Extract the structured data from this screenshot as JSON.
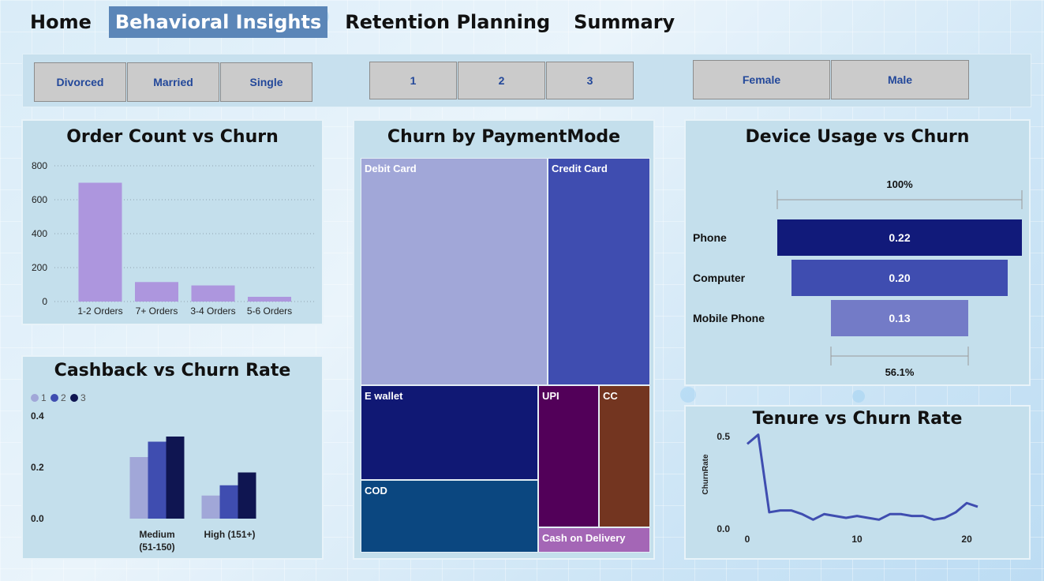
{
  "nav": {
    "tabs": [
      {
        "label": "Home",
        "active": false
      },
      {
        "label": "Behavioral Insights",
        "active": true
      },
      {
        "label": "Retention Planning",
        "active": false
      },
      {
        "label": "Summary",
        "active": false
      }
    ]
  },
  "slicers": {
    "marital": [
      "Divorced",
      "Married",
      "Single"
    ],
    "tier": [
      "1",
      "2",
      "3"
    ],
    "gender": [
      "Female",
      "Male"
    ]
  },
  "order_chart": {
    "title": "Order Count vs Churn",
    "bar_color": "#ad96de",
    "y_ticks": [
      "800",
      "600",
      "400",
      "200",
      "0"
    ]
  },
  "cashback_chart": {
    "title": "Cashback vs Churn Rate",
    "legend": [
      "1",
      "2",
      "3"
    ],
    "y_ticks": [
      "0.4",
      "0.2",
      "0.0"
    ],
    "category_lines": [
      [
        "Medium",
        "(51-150)"
      ],
      [
        "High (151+)"
      ]
    ]
  },
  "payment_chart": {
    "title": "Churn by PaymentMode",
    "cells": [
      {
        "label": "Debit Card",
        "color": "#a1a7d8"
      },
      {
        "label": "Credit Card",
        "color": "#3f4db0"
      },
      {
        "label": "E wallet",
        "color": "#101874"
      },
      {
        "label": "UPI",
        "color": "#520059"
      },
      {
        "label": "CC",
        "color": "#733520"
      },
      {
        "label": "COD",
        "color": "#0b4780"
      },
      {
        "label": "Cash on Delivery",
        "color": "#a466b6"
      }
    ]
  },
  "device_chart": {
    "title": "Device Usage vs Churn",
    "top_label": "100%",
    "bottom_label": "56.1%",
    "rows": [
      {
        "label": "Phone",
        "value": "0.22",
        "color": "#111a7a"
      },
      {
        "label": "Computer",
        "value": "0.20",
        "color": "#3f4db0"
      },
      {
        "label": "Mobile Phone",
        "value": "0.13",
        "color": "#737bc7"
      }
    ]
  },
  "tenure_chart": {
    "title": "Tenure vs Churn Rate",
    "ylabel": "ChurnRate",
    "y_ticks": [
      "0.5",
      "0.0"
    ],
    "x_ticks": [
      "0",
      "10",
      "20"
    ],
    "line_color": "#3f4db0"
  },
  "chart_data": [
    {
      "type": "bar",
      "title": "Order Count vs Churn",
      "categories": [
        "1-2 Orders",
        "7+ Orders",
        "3-4 Orders",
        "5-6 Orders"
      ],
      "values": [
        700,
        115,
        95,
        28
      ],
      "ylim": [
        0,
        800
      ],
      "grid": true
    },
    {
      "type": "bar",
      "title": "Cashback vs Churn Rate",
      "categories": [
        "Medium (51-150)",
        "High (151+)"
      ],
      "series": [
        {
          "name": "1",
          "values": [
            0.24,
            0.09
          ],
          "color": "#a1a7d8"
        },
        {
          "name": "2",
          "values": [
            0.3,
            0.13
          ],
          "color": "#3f4db0"
        },
        {
          "name": "3",
          "values": [
            0.32,
            0.18
          ],
          "color": "#0f1551"
        }
      ],
      "ylim": [
        0,
        0.4
      ],
      "legend": "top-left"
    },
    {
      "type": "treemap",
      "title": "Churn by PaymentMode",
      "categories": [
        "Debit Card",
        "Credit Card",
        "E wallet",
        "UPI",
        "CC",
        "COD",
        "Cash on Delivery"
      ]
    },
    {
      "type": "funnel",
      "title": "Device Usage vs Churn",
      "categories": [
        "Phone",
        "Computer",
        "Mobile Phone"
      ],
      "values": [
        0.22,
        0.2,
        0.13
      ]
    },
    {
      "type": "line",
      "title": "Tenure vs Churn Rate",
      "ylabel": "ChurnRate",
      "x": [
        0,
        1,
        2,
        3,
        4,
        5,
        6,
        7,
        8,
        9,
        10,
        11,
        12,
        13,
        14,
        15,
        16,
        17,
        18,
        19,
        20,
        21
      ],
      "values": [
        0.46,
        0.51,
        0.09,
        0.1,
        0.1,
        0.08,
        0.05,
        0.08,
        0.07,
        0.06,
        0.07,
        0.06,
        0.05,
        0.08,
        0.08,
        0.07,
        0.07,
        0.05,
        0.06,
        0.09,
        0.14,
        0.12
      ],
      "ylim": [
        0,
        0.5
      ],
      "xlim": [
        0,
        21
      ]
    }
  ]
}
